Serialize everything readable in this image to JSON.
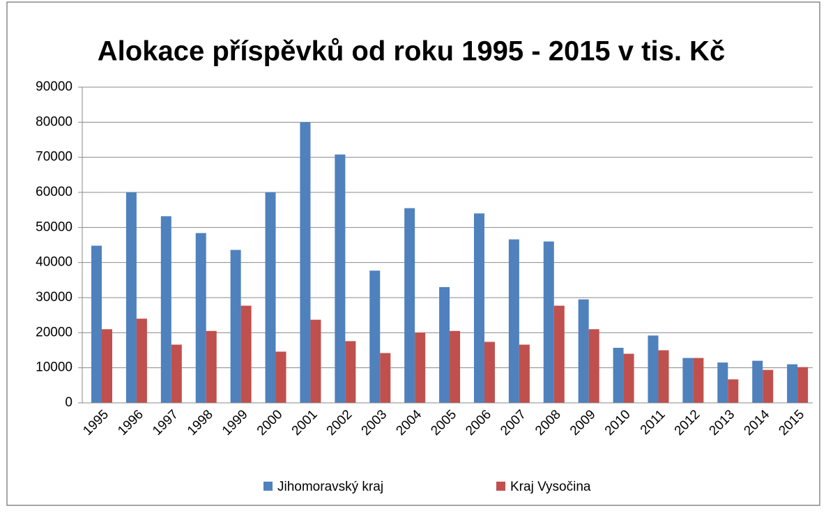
{
  "chart_data": {
    "type": "bar",
    "title": "Alokace příspěvků od roku 1995 - 2015 v tis. Kč",
    "categories": [
      "1995",
      "1996",
      "1997",
      "1998",
      "1999",
      "2000",
      "2001",
      "2002",
      "2003",
      "2004",
      "2005",
      "2006",
      "2007",
      "2008",
      "2009",
      "2010",
      "2011",
      "2012",
      "2013",
      "2014",
      "2015"
    ],
    "series": [
      {
        "name": "Jihomoravský kraj",
        "color": "#4f81bd",
        "values": [
          44800,
          60000,
          53200,
          48400,
          43600,
          60000,
          80000,
          70800,
          37700,
          55500,
          33000,
          54000,
          46600,
          46000,
          29500,
          15700,
          19200,
          12800,
          11500,
          12000,
          11000
        ]
      },
      {
        "name": "Kraj Vysočina",
        "color": "#c0504d",
        "values": [
          21000,
          24000,
          16600,
          20500,
          27700,
          14600,
          23700,
          17600,
          14200,
          20000,
          20500,
          17400,
          16600,
          27700,
          21000,
          14000,
          15000,
          12800,
          6700,
          9400,
          10200
        ]
      }
    ],
    "ylim": [
      0,
      90000
    ],
    "yticks": [
      0,
      10000,
      20000,
      30000,
      40000,
      50000,
      60000,
      70000,
      80000,
      90000
    ],
    "grid": true,
    "legend": "bottom"
  }
}
